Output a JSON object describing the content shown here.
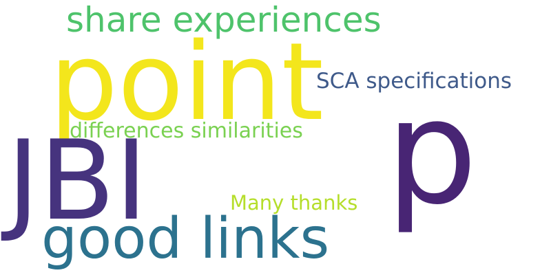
{
  "words": [
    {
      "text": "share experiences",
      "color": "#4ec36b"
    },
    {
      "text": "point",
      "color": "#f3e61c"
    },
    {
      "text": "SCA specifications",
      "color": "#3f5a8a"
    },
    {
      "text": "p",
      "color": "#482574"
    },
    {
      "text": "differences similarities",
      "color": "#7ad151"
    },
    {
      "text": "JBI",
      "color": "#46337e"
    },
    {
      "text": "Many thanks",
      "color": "#b5de2b"
    },
    {
      "text": "good links",
      "color": "#2c728e"
    }
  ]
}
